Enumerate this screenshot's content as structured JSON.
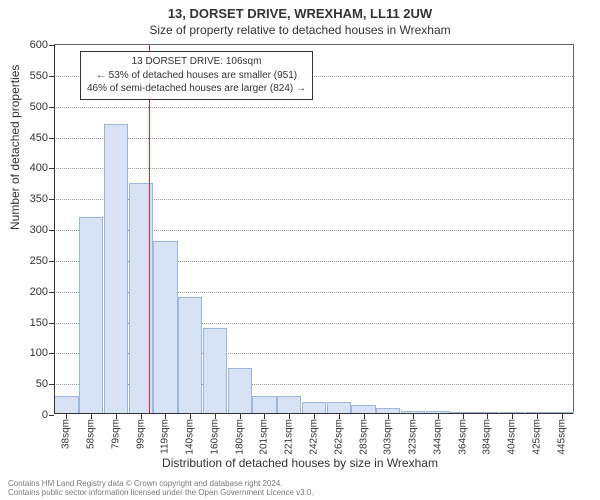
{
  "title_main": "13, DORSET DRIVE, WREXHAM, LL11 2UW",
  "title_sub": "Size of property relative to detached houses in Wrexham",
  "chart": {
    "type": "histogram",
    "ylabel": "Number of detached properties",
    "xlabel": "Distribution of detached houses by size in Wrexham",
    "ylim": [
      0,
      600
    ],
    "ytick_step": 50,
    "x_categories": [
      "38sqm",
      "58sqm",
      "79sqm",
      "99sqm",
      "119sqm",
      "140sqm",
      "160sqm",
      "180sqm",
      "201sqm",
      "221sqm",
      "242sqm",
      "262sqm",
      "283sqm",
      "303sqm",
      "323sqm",
      "344sqm",
      "364sqm",
      "384sqm",
      "404sqm",
      "425sqm",
      "445sqm"
    ],
    "values": [
      30,
      320,
      470,
      375,
      280,
      190,
      140,
      75,
      30,
      30,
      20,
      20,
      15,
      10,
      5,
      5,
      3,
      3,
      3,
      3,
      2
    ],
    "bar_fill": "#d7e3f4",
    "bar_stroke": "#9bb7de",
    "grid_color": "#999999",
    "background_color": "#ffffff",
    "reference_line": {
      "x_value_sqm": 106,
      "color": "#d62728"
    },
    "annotation": {
      "lines": [
        "13 DORSET DRIVE: 106sqm",
        "← 53% of detached houses are smaller (951)",
        "46% of semi-detached houses are larger (824) →"
      ],
      "border": "#333333",
      "background": "rgba(255,255,255,0.9)",
      "fontsize": 10
    },
    "axis_fontsize": 11,
    "label_fontsize": 12
  },
  "footer": {
    "line1": "Contains HM Land Registry data © Crown copyright and database right 2024.",
    "line2": "Contains public sector information licensed under the Open Government Licence v3.0."
  }
}
